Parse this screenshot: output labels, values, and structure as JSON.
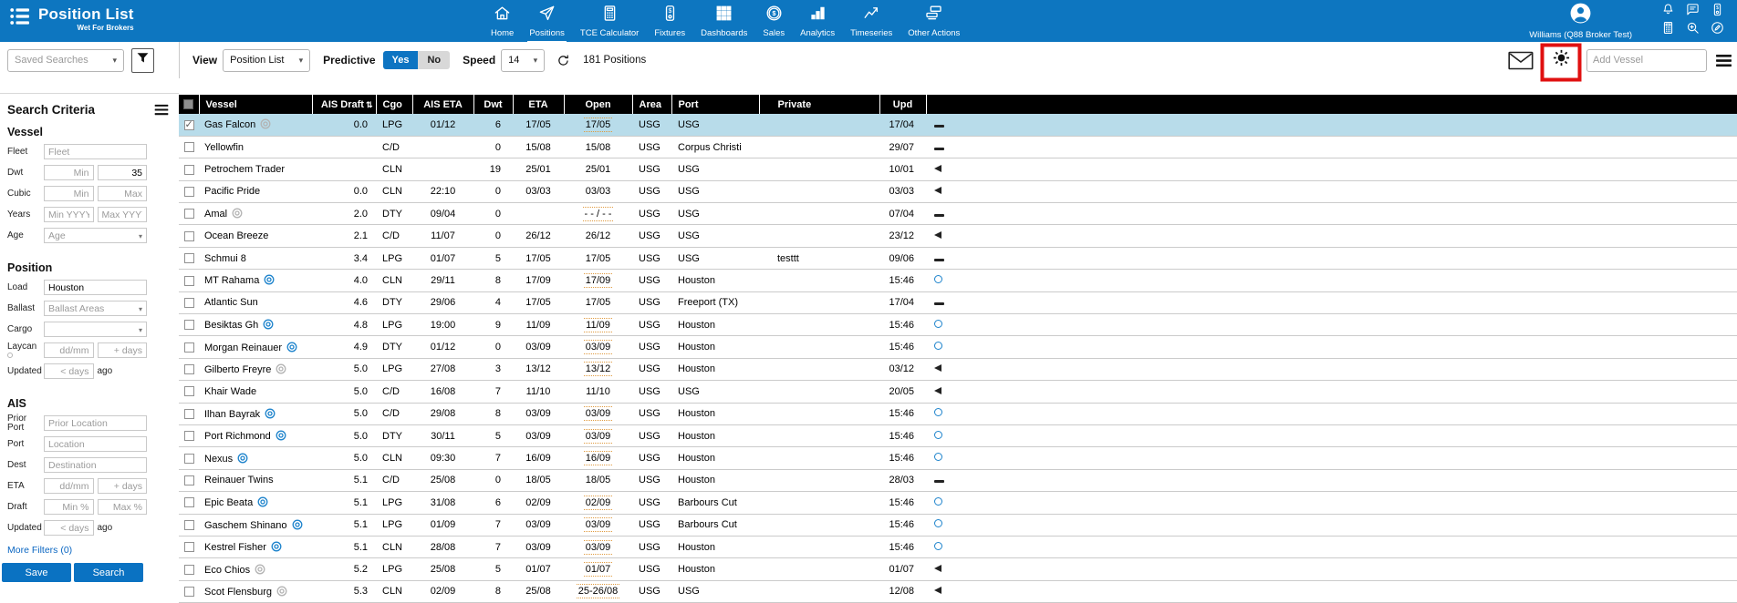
{
  "app": {
    "title": "Position List",
    "subtitle": "Wet For Brokers"
  },
  "nav": {
    "active": "Positions",
    "items": [
      {
        "label": "Home",
        "icon": "home"
      },
      {
        "label": "Positions",
        "icon": "send"
      },
      {
        "label": "TCE Calculator",
        "icon": "calculator"
      },
      {
        "label": "Fixtures",
        "icon": "fixture"
      },
      {
        "label": "Dashboards",
        "icon": "grid"
      },
      {
        "label": "Sales",
        "icon": "dollar-circle"
      },
      {
        "label": "Analytics",
        "icon": "bar-chart"
      },
      {
        "label": "Timeseries",
        "icon": "line-chart"
      },
      {
        "label": "Other Actions",
        "icon": "stack"
      }
    ]
  },
  "user": {
    "name": "Williams (Q88 Broker Test)"
  },
  "header_icons": [
    "bell",
    "chat",
    "fixture",
    "calculator",
    "zoom-in",
    "edit"
  ],
  "toolbar": {
    "saved_searches_placeholder": "Saved Searches",
    "view_label": "View",
    "view_value": "Position List",
    "predictive_label": "Predictive",
    "yes_label": "Yes",
    "no_label": "No",
    "speed_label": "Speed",
    "speed_value": "14",
    "positions_count": "181 Positions",
    "add_vessel_placeholder": "Add Vessel"
  },
  "annotation": {
    "type": "highlight-box",
    "color": "#e01010",
    "target": "sun-icon"
  },
  "sidebar": {
    "title": "Search Criteria",
    "more_filters": "More Filters (0)",
    "save_label": "Save",
    "search_label": "Search",
    "sections": [
      {
        "heading": "Vessel",
        "rows": [
          {
            "label": "Fleet",
            "fields": [
              {
                "kind": "input",
                "placeholder": "Fleet",
                "w": "full"
              }
            ]
          },
          {
            "label": "Dwt",
            "fields": [
              {
                "kind": "input",
                "placeholder": "Min",
                "w": "half",
                "align": "right"
              },
              {
                "kind": "input",
                "value": "35",
                "w": "half",
                "align": "right"
              }
            ]
          },
          {
            "label": "Cubic",
            "fields": [
              {
                "kind": "input",
                "placeholder": "Min",
                "w": "half",
                "align": "right"
              },
              {
                "kind": "input",
                "placeholder": "Max",
                "w": "half",
                "align": "right"
              }
            ]
          },
          {
            "label": "Years",
            "fields": [
              {
                "kind": "input",
                "placeholder": "Min YYYY",
                "w": "half",
                "align": "right"
              },
              {
                "kind": "input",
                "placeholder": "Max YYYY",
                "w": "half",
                "align": "right"
              }
            ]
          },
          {
            "label": "Age",
            "fields": [
              {
                "kind": "select",
                "placeholder": "Age",
                "w": "full"
              }
            ]
          }
        ]
      },
      {
        "heading": "Position",
        "rows": [
          {
            "label": "Load",
            "fields": [
              {
                "kind": "input",
                "value": "Houston",
                "w": "full"
              }
            ]
          },
          {
            "label": "Ballast",
            "fields": [
              {
                "kind": "select",
                "placeholder": "Ballast Areas",
                "w": "full"
              }
            ]
          },
          {
            "label": "Cargo",
            "fields": [
              {
                "kind": "select",
                "placeholder": "",
                "w": "full"
              }
            ]
          },
          {
            "label": "Laycan",
            "info": true,
            "fields": [
              {
                "kind": "input",
                "placeholder": "dd/mm",
                "w": "half",
                "align": "right"
              },
              {
                "kind": "input",
                "placeholder": "+ days",
                "w": "half",
                "align": "right"
              }
            ]
          },
          {
            "label": "Updated",
            "fields": [
              {
                "kind": "input",
                "placeholder": "< days",
                "w": "half",
                "align": "right"
              },
              {
                "kind": "text",
                "value": "ago"
              }
            ]
          }
        ]
      },
      {
        "heading": "AIS",
        "rows": [
          {
            "label": "Prior Port",
            "fields": [
              {
                "kind": "input",
                "placeholder": "Prior Location",
                "w": "full"
              }
            ]
          },
          {
            "label": "Port",
            "fields": [
              {
                "kind": "input",
                "placeholder": "Location",
                "w": "full"
              }
            ]
          },
          {
            "label": "Dest",
            "fields": [
              {
                "kind": "input",
                "placeholder": "Destination",
                "w": "full"
              }
            ]
          },
          {
            "label": "ETA",
            "fields": [
              {
                "kind": "input",
                "placeholder": "dd/mm",
                "w": "half",
                "align": "right"
              },
              {
                "kind": "input",
                "placeholder": "+ days",
                "w": "half",
                "align": "right"
              }
            ]
          },
          {
            "label": "Draft",
            "fields": [
              {
                "kind": "input",
                "placeholder": "Min %",
                "w": "half",
                "align": "right"
              },
              {
                "kind": "input",
                "placeholder": "Max %",
                "w": "half",
                "align": "right"
              }
            ]
          },
          {
            "label": "Updated",
            "fields": [
              {
                "kind": "input",
                "placeholder": "< days",
                "w": "half",
                "align": "right"
              },
              {
                "kind": "text",
                "value": "ago"
              }
            ]
          }
        ]
      }
    ]
  },
  "table": {
    "sort_icon": "⇅",
    "columns": [
      "",
      "Vessel",
      "AIS Draft",
      "Cgo",
      "AIS ETA",
      "Dwt",
      "ETA",
      "Open",
      "Area",
      "Port",
      "Private",
      "Upd",
      ""
    ],
    "rows": [
      {
        "vessel": "Gas Falcon",
        "ring": "gray",
        "draft": "0.0",
        "cgo": "LPG",
        "ais_eta": "01/12",
        "dwt": "6",
        "eta": "17/05",
        "open": "17/05",
        "dotted": true,
        "area": "USG",
        "port": "USG",
        "private": "",
        "upd": "17/04",
        "status": "dash",
        "selected": true,
        "checked": true
      },
      {
        "vessel": "Yellowfin",
        "ring": null,
        "draft": "",
        "cgo": "C/D",
        "ais_eta": "",
        "dwt": "0",
        "eta": "15/08",
        "open": "15/08",
        "dotted": false,
        "area": "USG",
        "port": "Corpus Christi",
        "private": "",
        "upd": "29/07",
        "status": "dash"
      },
      {
        "vessel": "Petrochem Trader",
        "ring": null,
        "draft": "",
        "cgo": "CLN",
        "ais_eta": "",
        "dwt": "19",
        "eta": "25/01",
        "open": "25/01",
        "dotted": false,
        "area": "USG",
        "port": "USG",
        "private": "",
        "upd": "10/01",
        "status": "tri"
      },
      {
        "vessel": "Pacific Pride",
        "ring": null,
        "draft": "0.0",
        "cgo": "CLN",
        "ais_eta": "22:10",
        "dwt": "0",
        "eta": "03/03",
        "open": "03/03",
        "dotted": false,
        "area": "USG",
        "port": "USG",
        "private": "",
        "upd": "03/03",
        "status": "tri"
      },
      {
        "vessel": "Amal",
        "ring": "gray",
        "draft": "2.0",
        "cgo": "DTY",
        "ais_eta": "09/04",
        "dwt": "0",
        "eta": "",
        "open": "- - / - -",
        "dotted": true,
        "area": "USG",
        "port": "USG",
        "private": "",
        "upd": "07/04",
        "status": "dash"
      },
      {
        "vessel": "Ocean Breeze",
        "ring": null,
        "draft": "2.1",
        "cgo": "C/D",
        "ais_eta": "11/07",
        "dwt": "0",
        "eta": "26/12",
        "open": "26/12",
        "dotted": false,
        "area": "USG",
        "port": "USG",
        "private": "",
        "upd": "23/12",
        "status": "tri"
      },
      {
        "vessel": "Schmui 8",
        "ring": null,
        "draft": "3.4",
        "cgo": "LPG",
        "ais_eta": "01/07",
        "dwt": "5",
        "eta": "17/05",
        "open": "17/05",
        "dotted": false,
        "area": "USG",
        "port": "USG",
        "private": "testtt",
        "upd": "09/06",
        "status": "dash"
      },
      {
        "vessel": "MT Rahama",
        "ring": "blue",
        "draft": "4.0",
        "cgo": "CLN",
        "ais_eta": "29/11",
        "dwt": "8",
        "eta": "17/09",
        "open": "17/09",
        "dotted": true,
        "area": "USG",
        "port": "Houston",
        "private": "",
        "upd": "15:46",
        "status": "circle"
      },
      {
        "vessel": "Atlantic Sun",
        "ring": null,
        "draft": "4.6",
        "cgo": "DTY",
        "ais_eta": "29/06",
        "dwt": "4",
        "eta": "17/05",
        "open": "17/05",
        "dotted": false,
        "area": "USG",
        "port": "Freeport (TX)",
        "private": "",
        "upd": "17/04",
        "status": "dash"
      },
      {
        "vessel": "Besiktas Gh",
        "ring": "blue",
        "draft": "4.8",
        "cgo": "LPG",
        "ais_eta": "19:00",
        "dwt": "9",
        "eta": "11/09",
        "open": "11/09",
        "dotted": true,
        "area": "USG",
        "port": "Houston",
        "private": "",
        "upd": "15:46",
        "status": "circle"
      },
      {
        "vessel": "Morgan Reinauer",
        "ring": "blue",
        "draft": "4.9",
        "cgo": "DTY",
        "ais_eta": "01/12",
        "dwt": "0",
        "eta": "03/09",
        "open": "03/09",
        "dotted": true,
        "area": "USG",
        "port": "Houston",
        "private": "",
        "upd": "15:46",
        "status": "circle"
      },
      {
        "vessel": "Gilberto Freyre",
        "ring": "gray",
        "draft": "5.0",
        "cgo": "LPG",
        "ais_eta": "27/08",
        "dwt": "3",
        "eta": "13/12",
        "open": "13/12",
        "dotted": true,
        "area": "USG",
        "port": "Houston",
        "private": "",
        "upd": "03/12",
        "status": "tri"
      },
      {
        "vessel": "Khair Wade",
        "ring": null,
        "draft": "5.0",
        "cgo": "C/D",
        "ais_eta": "16/08",
        "dwt": "7",
        "eta": "11/10",
        "open": "11/10",
        "dotted": false,
        "area": "USG",
        "port": "USG",
        "private": "",
        "upd": "20/05",
        "status": "tri"
      },
      {
        "vessel": "Ilhan Bayrak",
        "ring": "blue",
        "draft": "5.0",
        "cgo": "C/D",
        "ais_eta": "29/08",
        "dwt": "8",
        "eta": "03/09",
        "open": "03/09",
        "dotted": true,
        "area": "USG",
        "port": "Houston",
        "private": "",
        "upd": "15:46",
        "status": "circle"
      },
      {
        "vessel": "Port Richmond",
        "ring": "blue",
        "draft": "5.0",
        "cgo": "DTY",
        "ais_eta": "30/11",
        "dwt": "5",
        "eta": "03/09",
        "open": "03/09",
        "dotted": true,
        "area": "USG",
        "port": "Houston",
        "private": "",
        "upd": "15:46",
        "status": "circle"
      },
      {
        "vessel": "Nexus",
        "ring": "blue",
        "draft": "5.0",
        "cgo": "CLN",
        "ais_eta": "09:30",
        "dwt": "7",
        "eta": "16/09",
        "open": "16/09",
        "dotted": true,
        "area": "USG",
        "port": "Houston",
        "private": "",
        "upd": "15:46",
        "status": "circle"
      },
      {
        "vessel": "Reinauer Twins",
        "ring": null,
        "draft": "5.1",
        "cgo": "C/D",
        "ais_eta": "25/08",
        "dwt": "0",
        "eta": "18/05",
        "open": "18/05",
        "dotted": false,
        "area": "USG",
        "port": "Houston",
        "private": "",
        "upd": "28/03",
        "status": "dash"
      },
      {
        "vessel": "Epic Beata",
        "ring": "blue",
        "draft": "5.1",
        "cgo": "LPG",
        "ais_eta": "31/08",
        "dwt": "6",
        "eta": "02/09",
        "open": "02/09",
        "dotted": true,
        "area": "USG",
        "port": "Barbours Cut",
        "private": "",
        "upd": "15:46",
        "status": "circle"
      },
      {
        "vessel": "Gaschem Shinano",
        "ring": "blue",
        "draft": "5.1",
        "cgo": "LPG",
        "ais_eta": "01/09",
        "dwt": "7",
        "eta": "03/09",
        "open": "03/09",
        "dotted": true,
        "area": "USG",
        "port": "Barbours Cut",
        "private": "",
        "upd": "15:46",
        "status": "circle"
      },
      {
        "vessel": "Kestrel Fisher",
        "ring": "blue",
        "draft": "5.1",
        "cgo": "CLN",
        "ais_eta": "28/08",
        "dwt": "7",
        "eta": "03/09",
        "open": "03/09",
        "dotted": true,
        "area": "USG",
        "port": "Houston",
        "private": "",
        "upd": "15:46",
        "status": "circle"
      },
      {
        "vessel": "Eco Chios",
        "ring": "gray",
        "draft": "5.2",
        "cgo": "LPG",
        "ais_eta": "25/08",
        "dwt": "5",
        "eta": "01/07",
        "open": "01/07",
        "dotted": true,
        "area": "USG",
        "port": "Houston",
        "private": "",
        "upd": "01/07",
        "status": "tri"
      },
      {
        "vessel": "Scot Flensburg",
        "ring": "gray",
        "draft": "5.3",
        "cgo": "CLN",
        "ais_eta": "02/09",
        "dwt": "8",
        "eta": "25/08",
        "open": "25-26/08",
        "dotted": true,
        "area": "USG",
        "port": "USG",
        "private": "",
        "upd": "12/08",
        "status": "tri"
      }
    ]
  }
}
